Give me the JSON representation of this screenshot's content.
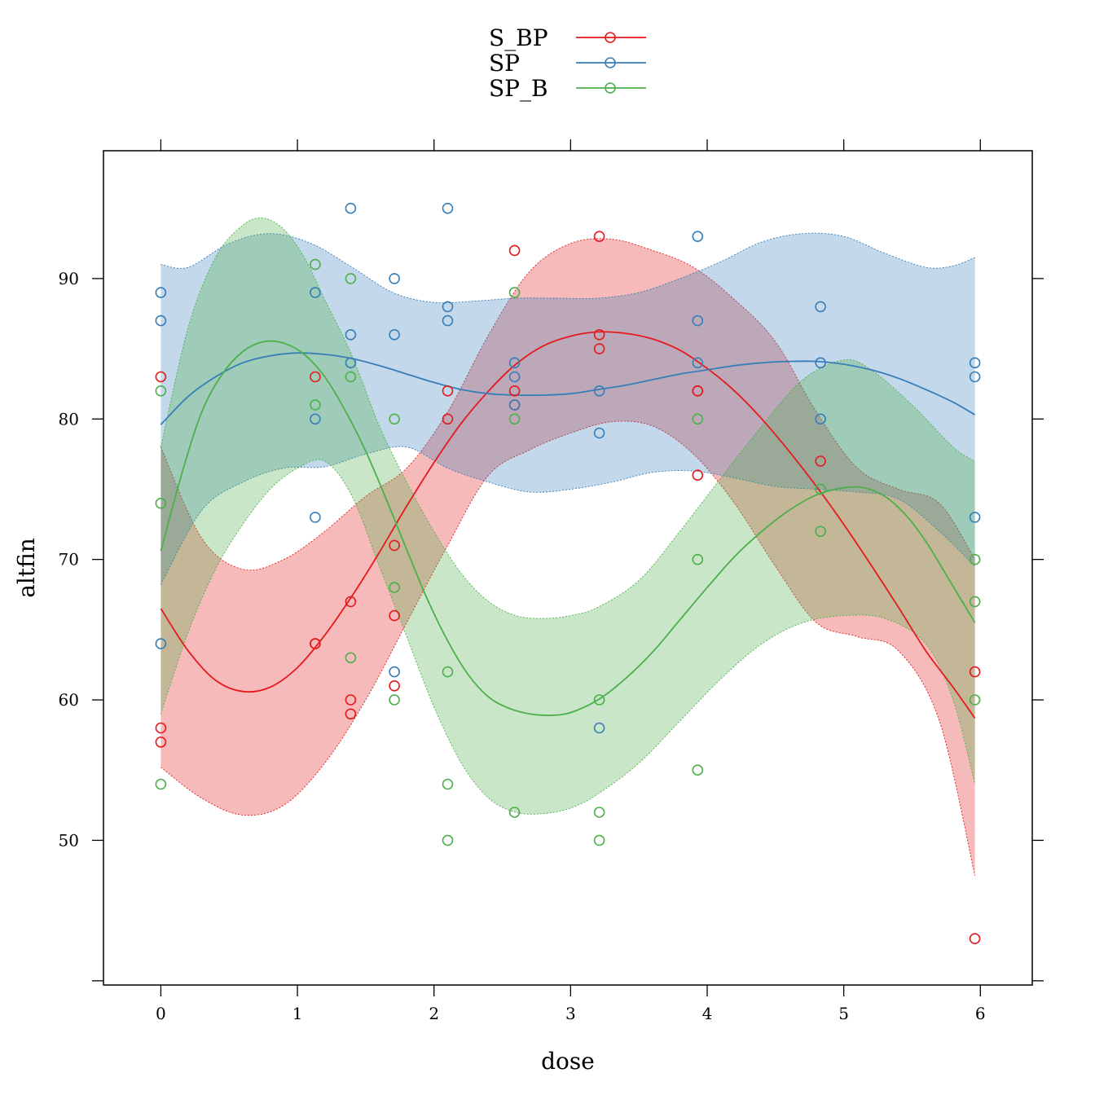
{
  "chart_data": {
    "type": "scatter",
    "title": "",
    "xlabel": "dose",
    "ylabel": "altfin",
    "xlim": [
      -0.42,
      6.38
    ],
    "ylim": [
      39.7,
      99.1
    ],
    "xticks": [
      0,
      1,
      2,
      3,
      4,
      5,
      6
    ],
    "yticks": [
      50,
      60,
      70,
      80,
      90
    ],
    "legend_position": "top",
    "grid": false,
    "series": [
      {
        "name": "S_BP",
        "color": "#e41a1c",
        "points": [
          [
            0,
            83
          ],
          [
            0,
            58
          ],
          [
            0,
            57
          ],
          [
            1.13,
            83
          ],
          [
            1.13,
            64
          ],
          [
            1.13,
            64
          ],
          [
            1.39,
            67
          ],
          [
            1.39,
            60
          ],
          [
            1.39,
            59
          ],
          [
            1.71,
            71
          ],
          [
            1.71,
            66
          ],
          [
            1.71,
            61
          ],
          [
            2.1,
            82
          ],
          [
            2.1,
            80
          ],
          [
            2.59,
            92
          ],
          [
            2.59,
            82
          ],
          [
            2.59,
            81
          ],
          [
            3.21,
            93
          ],
          [
            3.21,
            86
          ],
          [
            3.21,
            85
          ],
          [
            3.93,
            82
          ],
          [
            3.93,
            82
          ],
          [
            3.93,
            76
          ],
          [
            4.83,
            77
          ],
          [
            5.96,
            62
          ],
          [
            5.96,
            43
          ]
        ],
        "fit": [
          [
            0,
            66.5
          ],
          [
            0.2,
            63.5
          ],
          [
            0.4,
            61.4
          ],
          [
            0.6,
            60.6
          ],
          [
            0.8,
            60.9
          ],
          [
            1.0,
            62.3
          ],
          [
            1.2,
            64.6
          ],
          [
            1.4,
            67.4
          ],
          [
            1.6,
            70.5
          ],
          [
            1.8,
            73.8
          ],
          [
            2.0,
            76.9
          ],
          [
            2.2,
            79.7
          ],
          [
            2.4,
            82.0
          ],
          [
            2.6,
            83.9
          ],
          [
            2.8,
            85.2
          ],
          [
            3.0,
            85.9
          ],
          [
            3.2,
            86.2
          ],
          [
            3.4,
            86.1
          ],
          [
            3.6,
            85.7
          ],
          [
            3.8,
            84.9
          ],
          [
            4.0,
            83.6
          ],
          [
            4.2,
            82.0
          ],
          [
            4.4,
            80.0
          ],
          [
            4.6,
            77.7
          ],
          [
            4.8,
            75.2
          ],
          [
            5.0,
            72.5
          ],
          [
            5.2,
            69.6
          ],
          [
            5.4,
            66.6
          ],
          [
            5.6,
            63.5
          ],
          [
            5.8,
            60.9
          ],
          [
            5.96,
            58.7
          ]
        ],
        "band_upper": [
          [
            0,
            78.0
          ],
          [
            0.3,
            71.5
          ],
          [
            0.6,
            69.3
          ],
          [
            0.9,
            70.0
          ],
          [
            1.2,
            72.0
          ],
          [
            1.5,
            74.5
          ],
          [
            1.8,
            76.5
          ],
          [
            2.1,
            80.5
          ],
          [
            2.4,
            86.0
          ],
          [
            2.7,
            90.5
          ],
          [
            3.0,
            92.5
          ],
          [
            3.3,
            92.8
          ],
          [
            3.6,
            92.0
          ],
          [
            3.9,
            90.8
          ],
          [
            4.2,
            88.5
          ],
          [
            4.5,
            85.5
          ],
          [
            4.8,
            80.5
          ],
          [
            5.1,
            76.5
          ],
          [
            5.4,
            75.0
          ],
          [
            5.7,
            74.0
          ],
          [
            5.96,
            70.0
          ]
        ],
        "band_lower": [
          [
            0,
            55.2
          ],
          [
            0.3,
            53.0
          ],
          [
            0.6,
            51.8
          ],
          [
            0.9,
            52.5
          ],
          [
            1.2,
            55.5
          ],
          [
            1.5,
            60.0
          ],
          [
            1.8,
            65.5
          ],
          [
            2.1,
            71.0
          ],
          [
            2.4,
            76.0
          ],
          [
            2.7,
            77.8
          ],
          [
            3.0,
            79.0
          ],
          [
            3.3,
            79.8
          ],
          [
            3.6,
            79.5
          ],
          [
            3.9,
            77.5
          ],
          [
            4.2,
            74.0
          ],
          [
            4.5,
            69.5
          ],
          [
            4.8,
            65.5
          ],
          [
            5.1,
            64.5
          ],
          [
            5.4,
            63.5
          ],
          [
            5.7,
            58.5
          ],
          [
            5.96,
            47.5
          ]
        ]
      },
      {
        "name": "SP",
        "color": "#377eb8",
        "points": [
          [
            0,
            89
          ],
          [
            0,
            87
          ],
          [
            0,
            64
          ],
          [
            1.13,
            89
          ],
          [
            1.13,
            80
          ],
          [
            1.13,
            73
          ],
          [
            1.39,
            95
          ],
          [
            1.39,
            86
          ],
          [
            1.39,
            84
          ],
          [
            1.71,
            90
          ],
          [
            1.71,
            86
          ],
          [
            1.71,
            62
          ],
          [
            2.1,
            95
          ],
          [
            2.1,
            88
          ],
          [
            2.1,
            87
          ],
          [
            2.59,
            84
          ],
          [
            2.59,
            83
          ],
          [
            2.59,
            81
          ],
          [
            3.21,
            82
          ],
          [
            3.21,
            79
          ],
          [
            3.21,
            58
          ],
          [
            3.93,
            93
          ],
          [
            3.93,
            87
          ],
          [
            3.93,
            84
          ],
          [
            4.83,
            88
          ],
          [
            4.83,
            84
          ],
          [
            4.83,
            80
          ],
          [
            5.96,
            84
          ],
          [
            5.96,
            83
          ],
          [
            5.96,
            73
          ]
        ],
        "fit": [
          [
            0,
            79.6
          ],
          [
            0.2,
            81.6
          ],
          [
            0.4,
            83.0
          ],
          [
            0.6,
            84.0
          ],
          [
            0.8,
            84.5
          ],
          [
            1.0,
            84.7
          ],
          [
            1.2,
            84.6
          ],
          [
            1.4,
            84.3
          ],
          [
            1.6,
            83.8
          ],
          [
            1.8,
            83.2
          ],
          [
            2.0,
            82.6
          ],
          [
            2.2,
            82.1
          ],
          [
            2.4,
            81.8
          ],
          [
            2.6,
            81.7
          ],
          [
            2.8,
            81.7
          ],
          [
            3.0,
            81.8
          ],
          [
            3.2,
            82.1
          ],
          [
            3.4,
            82.4
          ],
          [
            3.6,
            82.8
          ],
          [
            3.8,
            83.2
          ],
          [
            4.0,
            83.5
          ],
          [
            4.2,
            83.8
          ],
          [
            4.4,
            84.0
          ],
          [
            4.6,
            84.1
          ],
          [
            4.8,
            84.1
          ],
          [
            5.0,
            83.9
          ],
          [
            5.2,
            83.5
          ],
          [
            5.4,
            82.9
          ],
          [
            5.6,
            82.1
          ],
          [
            5.8,
            81.2
          ],
          [
            5.96,
            80.3
          ]
        ],
        "band_upper": [
          [
            0,
            91.0
          ],
          [
            0.2,
            90.8
          ],
          [
            0.5,
            92.5
          ],
          [
            0.8,
            93.2
          ],
          [
            1.1,
            92.5
          ],
          [
            1.4,
            90.8
          ],
          [
            1.7,
            89.0
          ],
          [
            2.0,
            88.3
          ],
          [
            2.3,
            88.4
          ],
          [
            2.6,
            88.6
          ],
          [
            2.9,
            88.6
          ],
          [
            3.2,
            88.6
          ],
          [
            3.5,
            89.0
          ],
          [
            3.8,
            90.0
          ],
          [
            4.1,
            91.2
          ],
          [
            4.4,
            92.6
          ],
          [
            4.7,
            93.2
          ],
          [
            5.0,
            93.0
          ],
          [
            5.3,
            91.8
          ],
          [
            5.6,
            90.8
          ],
          [
            5.8,
            90.9
          ],
          [
            5.96,
            91.5
          ]
        ],
        "band_lower": [
          [
            0,
            68.2
          ],
          [
            0.3,
            73.5
          ],
          [
            0.6,
            75.5
          ],
          [
            0.9,
            76.5
          ],
          [
            1.2,
            76.6
          ],
          [
            1.5,
            77.5
          ],
          [
            1.8,
            78.0
          ],
          [
            2.1,
            76.5
          ],
          [
            2.4,
            75.5
          ],
          [
            2.7,
            74.8
          ],
          [
            3.0,
            75.0
          ],
          [
            3.3,
            75.5
          ],
          [
            3.6,
            76.2
          ],
          [
            3.9,
            76.3
          ],
          [
            4.2,
            75.8
          ],
          [
            4.5,
            75.2
          ],
          [
            4.8,
            75.0
          ],
          [
            5.1,
            74.8
          ],
          [
            5.4,
            74.3
          ],
          [
            5.7,
            72.0
          ],
          [
            5.96,
            69.5
          ]
        ]
      },
      {
        "name": "SP_B",
        "color": "#4daf4a",
        "points": [
          [
            0,
            82
          ],
          [
            0,
            74
          ],
          [
            0,
            54
          ],
          [
            1.13,
            91
          ],
          [
            1.13,
            81
          ],
          [
            1.39,
            90
          ],
          [
            1.39,
            83
          ],
          [
            1.39,
            63
          ],
          [
            1.71,
            80
          ],
          [
            1.71,
            68
          ],
          [
            1.71,
            60
          ],
          [
            2.1,
            62
          ],
          [
            2.1,
            54
          ],
          [
            2.1,
            50
          ],
          [
            2.59,
            89
          ],
          [
            2.59,
            80
          ],
          [
            2.59,
            52
          ],
          [
            3.21,
            60
          ],
          [
            3.21,
            52
          ],
          [
            3.21,
            50
          ],
          [
            3.93,
            80
          ],
          [
            3.93,
            70
          ],
          [
            3.93,
            55
          ],
          [
            4.83,
            75
          ],
          [
            4.83,
            72
          ],
          [
            5.96,
            70
          ],
          [
            5.96,
            67
          ],
          [
            5.96,
            60
          ]
        ],
        "fit": [
          [
            0,
            70.6
          ],
          [
            0.15,
            76.0
          ],
          [
            0.3,
            80.5
          ],
          [
            0.45,
            83.2
          ],
          [
            0.6,
            84.8
          ],
          [
            0.75,
            85.5
          ],
          [
            0.9,
            85.4
          ],
          [
            1.05,
            84.6
          ],
          [
            1.2,
            83.0
          ],
          [
            1.35,
            80.6
          ],
          [
            1.5,
            77.7
          ],
          [
            1.65,
            74.3
          ],
          [
            1.8,
            70.7
          ],
          [
            1.95,
            67.2
          ],
          [
            2.1,
            64.2
          ],
          [
            2.25,
            61.8
          ],
          [
            2.4,
            60.2
          ],
          [
            2.55,
            59.4
          ],
          [
            2.7,
            59.0
          ],
          [
            2.85,
            58.9
          ],
          [
            3.0,
            59.1
          ],
          [
            3.2,
            60.0
          ],
          [
            3.4,
            61.5
          ],
          [
            3.6,
            63.4
          ],
          [
            3.8,
            65.7
          ],
          [
            4.0,
            68.0
          ],
          [
            4.2,
            70.2
          ],
          [
            4.4,
            72.0
          ],
          [
            4.6,
            73.5
          ],
          [
            4.8,
            74.6
          ],
          [
            5.0,
            75.1
          ],
          [
            5.15,
            75.1
          ],
          [
            5.3,
            74.5
          ],
          [
            5.45,
            73.2
          ],
          [
            5.6,
            71.3
          ],
          [
            5.75,
            68.9
          ],
          [
            5.96,
            65.5
          ]
        ],
        "band_upper": [
          [
            0,
            78.0
          ],
          [
            0.2,
            86.5
          ],
          [
            0.4,
            91.5
          ],
          [
            0.6,
            93.8
          ],
          [
            0.75,
            94.3
          ],
          [
            0.9,
            93.5
          ],
          [
            1.05,
            91.5
          ],
          [
            1.2,
            88.5
          ],
          [
            1.4,
            84.5
          ],
          [
            1.6,
            79.5
          ],
          [
            1.8,
            75.5
          ],
          [
            2.0,
            72.0
          ],
          [
            2.2,
            69.0
          ],
          [
            2.4,
            67.0
          ],
          [
            2.6,
            66.0
          ],
          [
            2.8,
            65.8
          ],
          [
            3.0,
            66.0
          ],
          [
            3.2,
            66.6
          ],
          [
            3.5,
            68.5
          ],
          [
            3.8,
            72.0
          ],
          [
            4.1,
            75.8
          ],
          [
            4.4,
            79.5
          ],
          [
            4.7,
            82.8
          ],
          [
            5.0,
            84.2
          ],
          [
            5.2,
            83.5
          ],
          [
            5.5,
            81.0
          ],
          [
            5.8,
            78.0
          ],
          [
            5.96,
            77.0
          ]
        ],
        "band_lower": [
          [
            0,
            59.0
          ],
          [
            0.2,
            64.8
          ],
          [
            0.4,
            69.3
          ],
          [
            0.6,
            72.5
          ],
          [
            0.8,
            75.0
          ],
          [
            1.0,
            76.5
          ],
          [
            1.2,
            77.0
          ],
          [
            1.4,
            74.5
          ],
          [
            1.6,
            69.5
          ],
          [
            1.8,
            64.5
          ],
          [
            2.0,
            59.5
          ],
          [
            2.2,
            55.5
          ],
          [
            2.4,
            53.0
          ],
          [
            2.6,
            52.0
          ],
          [
            2.8,
            51.9
          ],
          [
            3.0,
            52.3
          ],
          [
            3.2,
            53.3
          ],
          [
            3.5,
            55.5
          ],
          [
            3.8,
            58.5
          ],
          [
            4.1,
            61.5
          ],
          [
            4.4,
            64.0
          ],
          [
            4.7,
            65.5
          ],
          [
            5.0,
            66.0
          ],
          [
            5.3,
            65.8
          ],
          [
            5.6,
            64.0
          ],
          [
            5.8,
            60.0
          ],
          [
            5.96,
            54.0
          ]
        ]
      }
    ]
  }
}
